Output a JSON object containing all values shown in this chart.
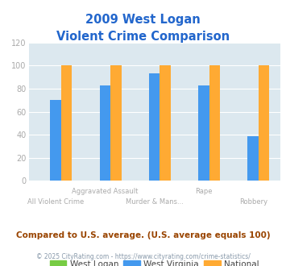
{
  "title_line1": "2009 West Logan",
  "title_line2": "Violent Crime Comparison",
  "categories_top": [
    "",
    "Aggravated Assault",
    "",
    "Rape",
    ""
  ],
  "categories_bottom": [
    "All Violent Crime",
    "",
    "Murder & Mans...",
    "",
    "Robbery"
  ],
  "series": {
    "West Logan": [
      0,
      0,
      0,
      0,
      0
    ],
    "West Virginia": [
      70,
      83,
      93,
      83,
      39
    ],
    "National": [
      100,
      100,
      100,
      100,
      100
    ]
  },
  "colors": {
    "West Logan": "#77cc44",
    "West Virginia": "#4499ee",
    "National": "#ffaa33"
  },
  "ylim": [
    0,
    120
  ],
  "yticks": [
    0,
    20,
    40,
    60,
    80,
    100,
    120
  ],
  "plot_bg": "#dce8ef",
  "title_color": "#2266cc",
  "tick_label_color": "#aaaaaa",
  "xtick_label_color": "#aaaaaa",
  "legend_labels": [
    "West Logan",
    "West Virginia",
    "National"
  ],
  "footer_text": "Compared to U.S. average. (U.S. average equals 100)",
  "credit_text": "© 2025 CityRating.com - https://www.cityrating.com/crime-statistics/",
  "footer_color": "#994400",
  "credit_color": "#8899aa",
  "bar_width": 0.22,
  "group_positions": [
    0,
    1,
    2,
    3,
    4
  ]
}
